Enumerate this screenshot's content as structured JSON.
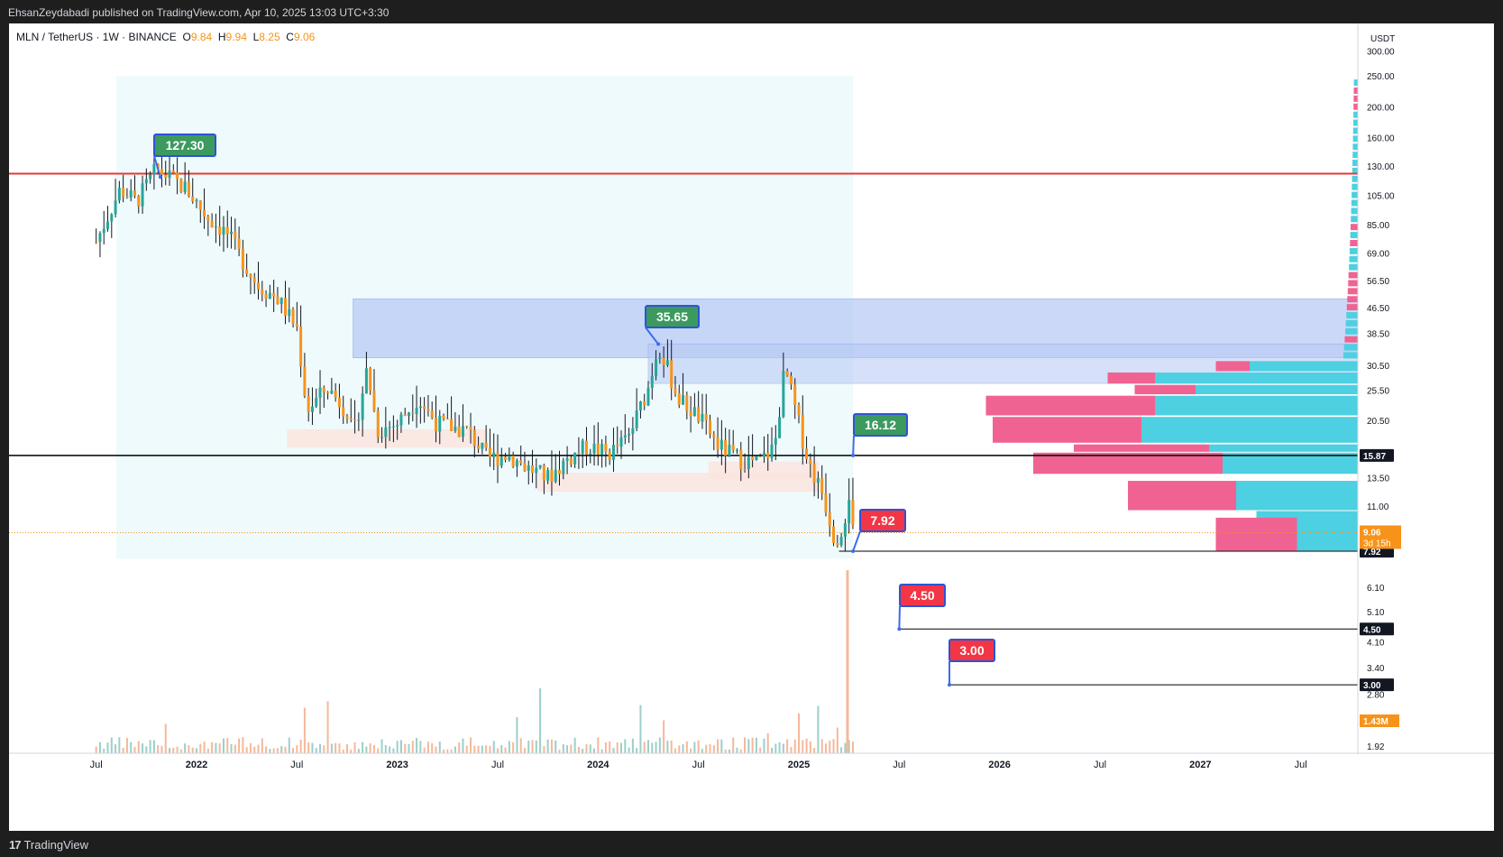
{
  "header": {
    "published": "EhsanZeydabadi published on TradingView.com, Apr 10, 2025 13:03 UTC+3:30"
  },
  "legend": {
    "symbol": "MLN / TetherUS · 1W · BINANCE",
    "o_label": "O",
    "o_value": "9.84",
    "h_label": "H",
    "h_value": "9.94",
    "l_label": "L",
    "l_value": "8.25",
    "c_label": "C",
    "c_value": "9.06"
  },
  "footer": {
    "brand": "TradingView"
  },
  "colors": {
    "up": "#26a69a",
    "down": "#f7931a",
    "resistance": "#e53935",
    "zone": "#3d6cf0",
    "vp_up": "#4dd0e1",
    "vp_down": "#f06292",
    "label_green": "#3c9a5f",
    "label_red": "#f23645"
  },
  "chart_data": {
    "type": "candlestick",
    "pair": "MLN / TetherUS",
    "timeframe": "1W",
    "exchange": "BINANCE",
    "currency_label": "USDT",
    "y_scale": "log",
    "x_ticks": [
      "Jul",
      "2022",
      "Jul",
      "2023",
      "Jul",
      "2024",
      "Jul",
      "2025",
      "Jul",
      "2026",
      "Jul",
      "2027",
      "Jul"
    ],
    "y_ticks": [
      "300.00",
      "250.00",
      "200.00",
      "160.00",
      "130.00",
      "105.00",
      "85.00",
      "69.00",
      "56.50",
      "46.50",
      "38.50",
      "30.50",
      "25.50",
      "20.50",
      "13.50",
      "11.00",
      "6.10",
      "5.10",
      "4.10",
      "3.40",
      "2.80",
      "2.30",
      "1.92"
    ],
    "last_price": "9.06",
    "countdown": "3d 15h",
    "volume_label": "1.43M",
    "price_tags": [
      "15.87",
      "7.92",
      "4.50",
      "3.00"
    ],
    "callouts": [
      {
        "text": "127.30",
        "kind": "high"
      },
      {
        "text": "35.65",
        "kind": "high"
      },
      {
        "text": "16.12",
        "kind": "high"
      },
      {
        "text": "7.92",
        "kind": "low"
      },
      {
        "text": "4.50",
        "kind": "target"
      },
      {
        "text": "3.00",
        "kind": "target"
      }
    ],
    "horizontal_lines": [
      {
        "price": 123,
        "color": "red",
        "label": ""
      },
      {
        "price": 15.87,
        "color": "black",
        "label": "15.87"
      },
      {
        "price": 7.92,
        "color": "black",
        "label": "7.92"
      },
      {
        "price": 4.5,
        "color": "black",
        "label": "4.50"
      },
      {
        "price": 3.0,
        "color": "black",
        "label": "3.00"
      }
    ],
    "zones": [
      {
        "name": "supply-zone",
        "top": 49.5,
        "bottom": 26.8
      }
    ],
    "ohlc": {
      "open": 9.84,
      "high": 9.94,
      "low": 8.25,
      "close": 9.06
    }
  }
}
